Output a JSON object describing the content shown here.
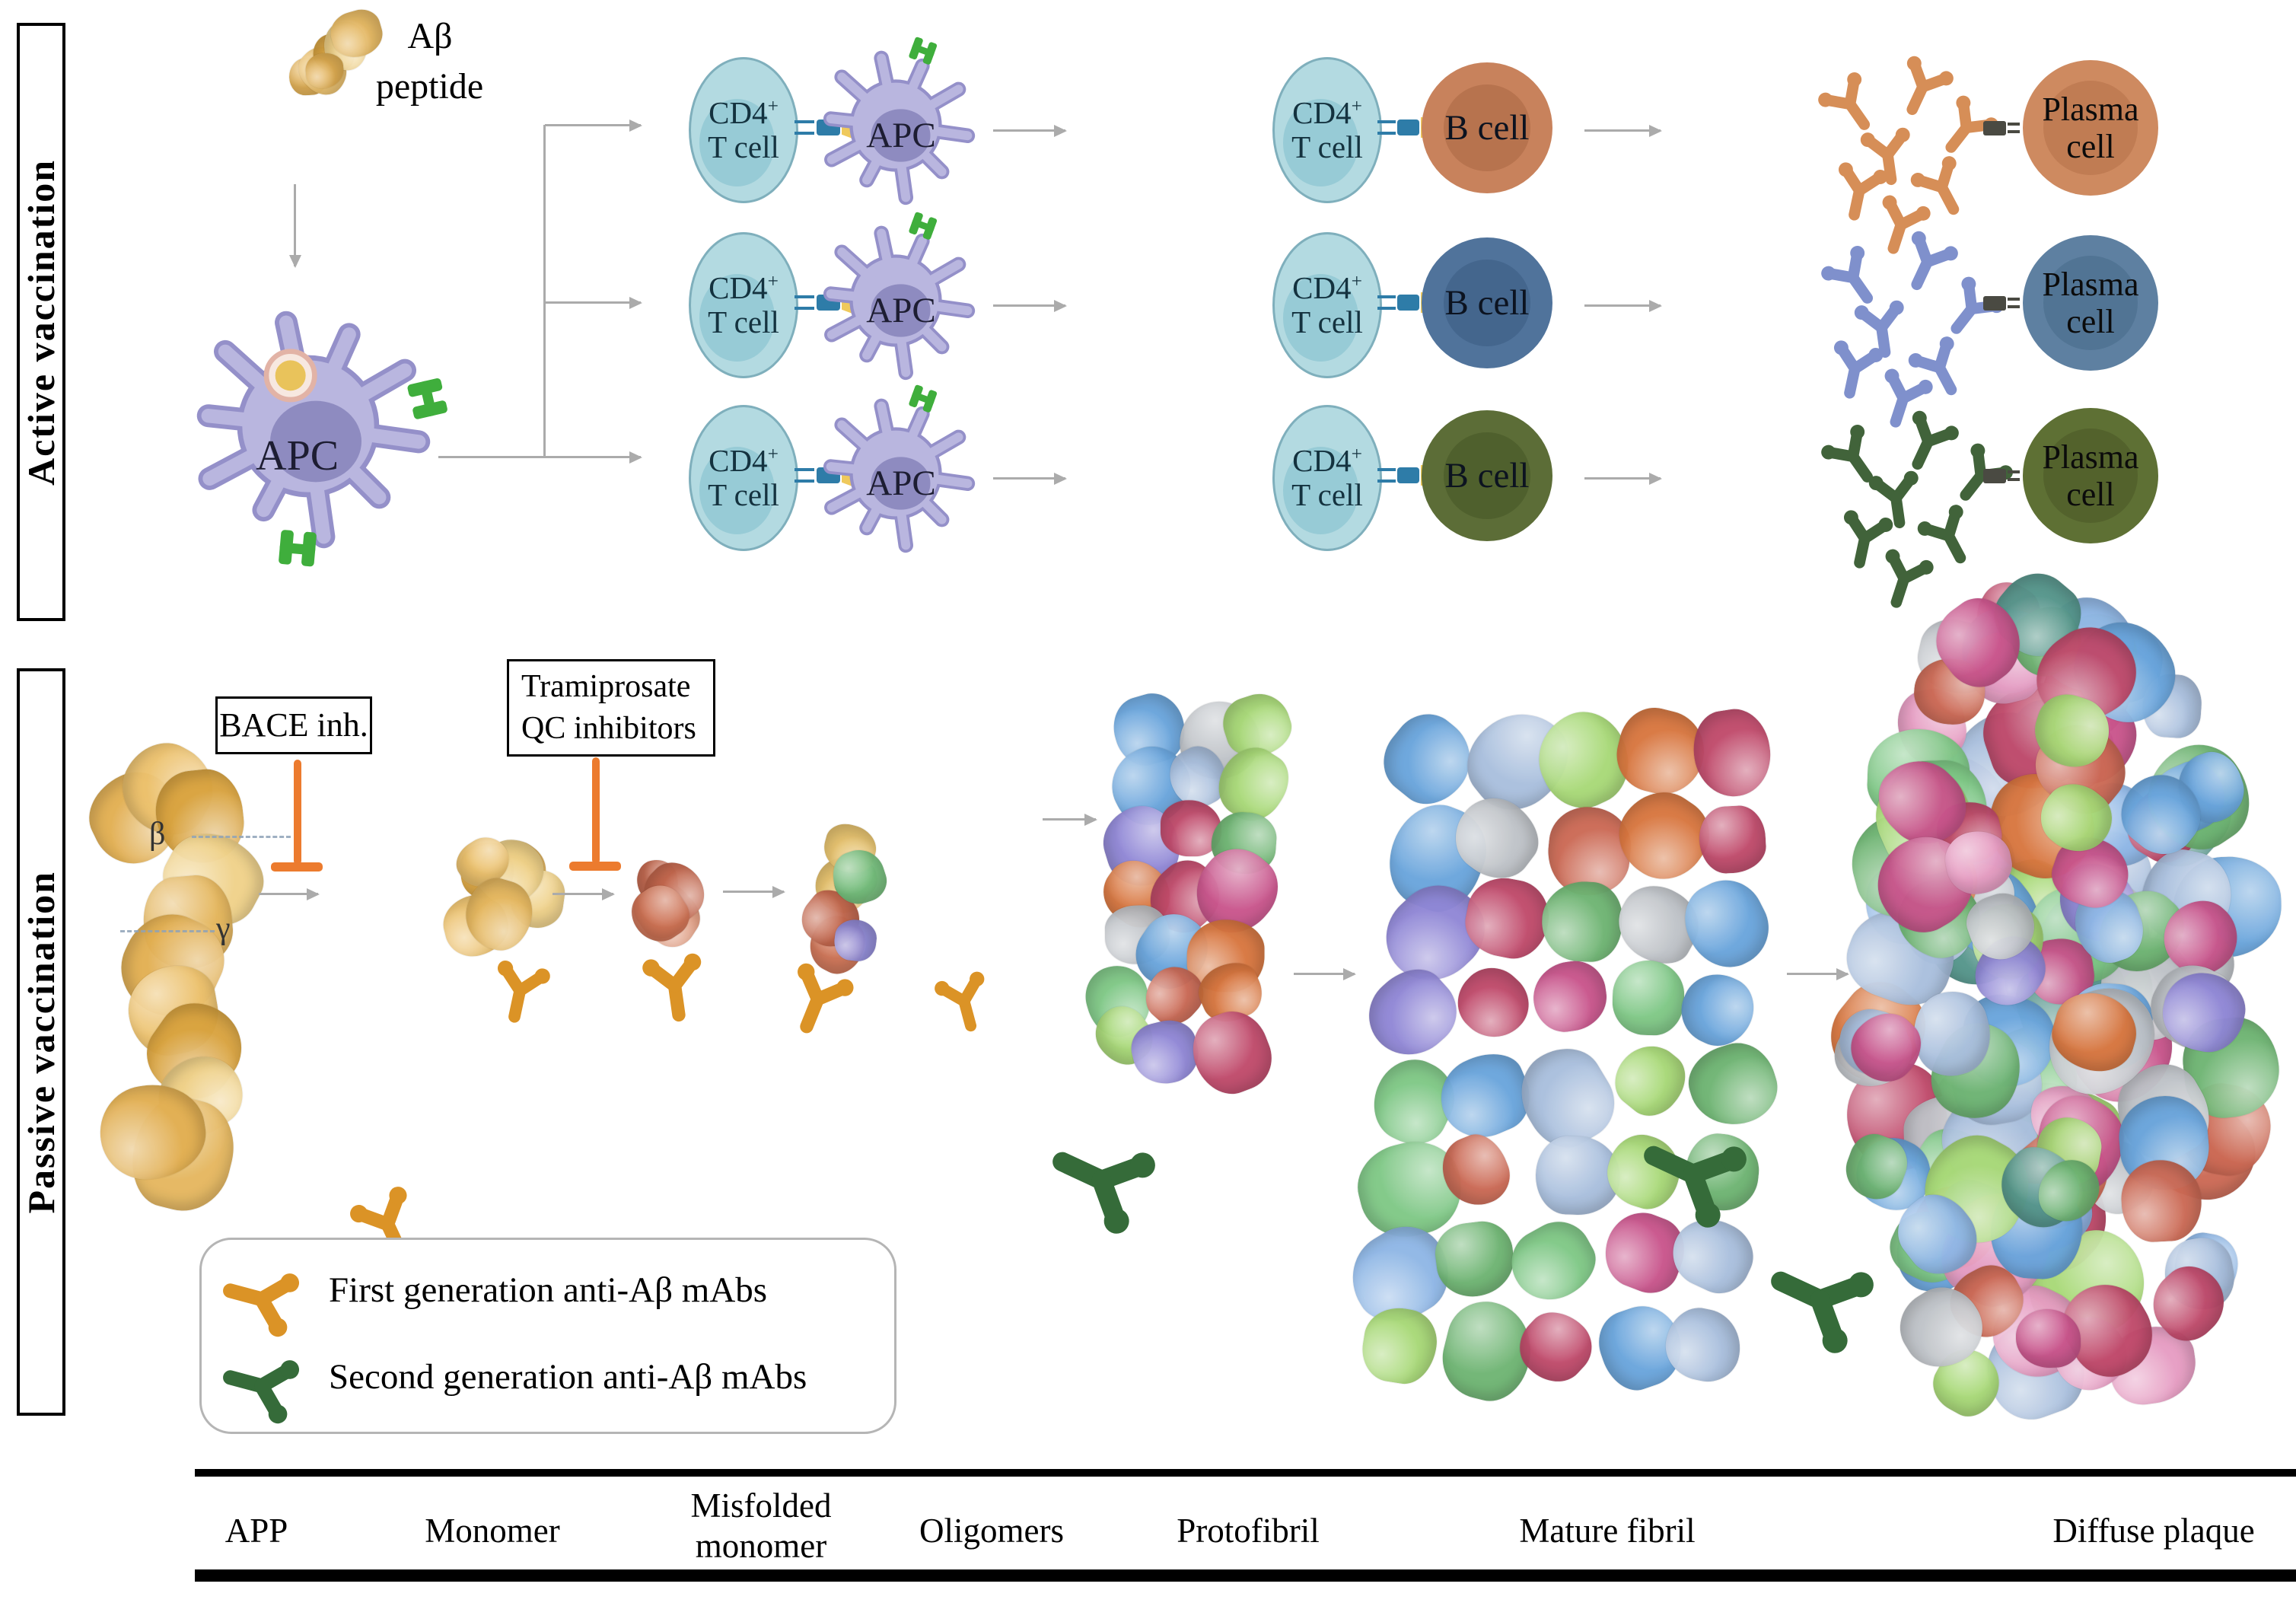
{
  "colors": {
    "arrowGray": "#ABABAB",
    "tcell": "#B3DAE1",
    "tcellInner": "#8EC5D1",
    "tcellBorder": "#7FAFBC",
    "apcBody": "#B9B6DF",
    "apcBorder": "#9490C9",
    "apcNuc": "#8E8BC0",
    "receptorGreen": "#3FAE3C",
    "connBlue": "#2E7CA8",
    "connYellow": "#EFC95C",
    "connDark": "#4A4A42",
    "b1": "#C8825C",
    "b1n": "#B5714C",
    "b2": "#50739B",
    "b2n": "#43658C",
    "b3": "#5C6D37",
    "b3n": "#4E5E2C",
    "p1": "#CE8A60",
    "p1n": "#BD7951",
    "p2": "#5E80A1",
    "p2n": "#4F7292",
    "p3": "#5E7034",
    "p3n": "#515F2B",
    "ab1": "#D68E57",
    "ab2": "#7F90CC",
    "ab3": "#41633A",
    "abFirst": "#DB9326",
    "abSecond": "#356B39",
    "inhibitor": "#EC7B2E",
    "dashBlue": "#8FA3B8"
  },
  "palettes": {
    "gold": [
      "#E2AF52",
      "#EDC26E",
      "#D9A33F",
      "#F0D28A",
      "#E5B75F"
    ],
    "salmon": [
      "#CE7355",
      "#D98568",
      "#C2654B",
      "#E09B7F",
      "#C96F50"
    ],
    "oligo": [
      "#CE7355",
      "#8F89D6",
      "#74BD7B",
      "#E5C06A",
      "#C2654B",
      "#9B93DD",
      "#CE7355"
    ],
    "fibril": [
      "#6AA5DC",
      "#C9558C",
      "#6FB573",
      "#9087D6",
      "#D8763F",
      "#A9BFDD",
      "#BFC3C8",
      "#7FC886",
      "#C04A6B",
      "#8FB7E6",
      "#A8D977",
      "#CC6A55"
    ],
    "plaque": [
      "#6FB573",
      "#6AA5DC",
      "#C9558C",
      "#9087D6",
      "#D8763F",
      "#A9BFDD",
      "#BFC3C8",
      "#7FC886",
      "#E79DC3",
      "#8FB7E6",
      "#CC6A55",
      "#55958B",
      "#C04A6B",
      "#A8D977"
    ]
  },
  "sections": {
    "active_label": "Active vaccination",
    "passive_label": "Passive vaccination"
  },
  "antigen": {
    "line1": "Aβ",
    "line2": "peptide"
  },
  "cells": {
    "apc": "APC",
    "cd4_base": "CD4",
    "cd4_sup": "+",
    "t_cell": "T cell",
    "b_cell": "B cell",
    "plasma_line1": "Plasma",
    "plasma_line2": "cell"
  },
  "inhibitors": {
    "bace": "BACE inh.",
    "tram_line1": "Tramiprosate",
    "tram_line2": "QC inhibitors"
  },
  "cleavage": {
    "beta": "β",
    "gamma": "γ"
  },
  "legend": {
    "first_gen": "First generation anti-Aβ mAbs",
    "second_gen": "Second generation anti-Aβ mAbs"
  },
  "axis": {
    "app": "APP",
    "monomer": "Monomer",
    "misfolded_line1": "Misfolded",
    "misfolded_line2": "monomer",
    "oligomers": "Oligomers",
    "protofibril": "Protofibril",
    "mature_fibril": "Mature fibril",
    "diffuse_plaque": "Diffuse plaque"
  }
}
